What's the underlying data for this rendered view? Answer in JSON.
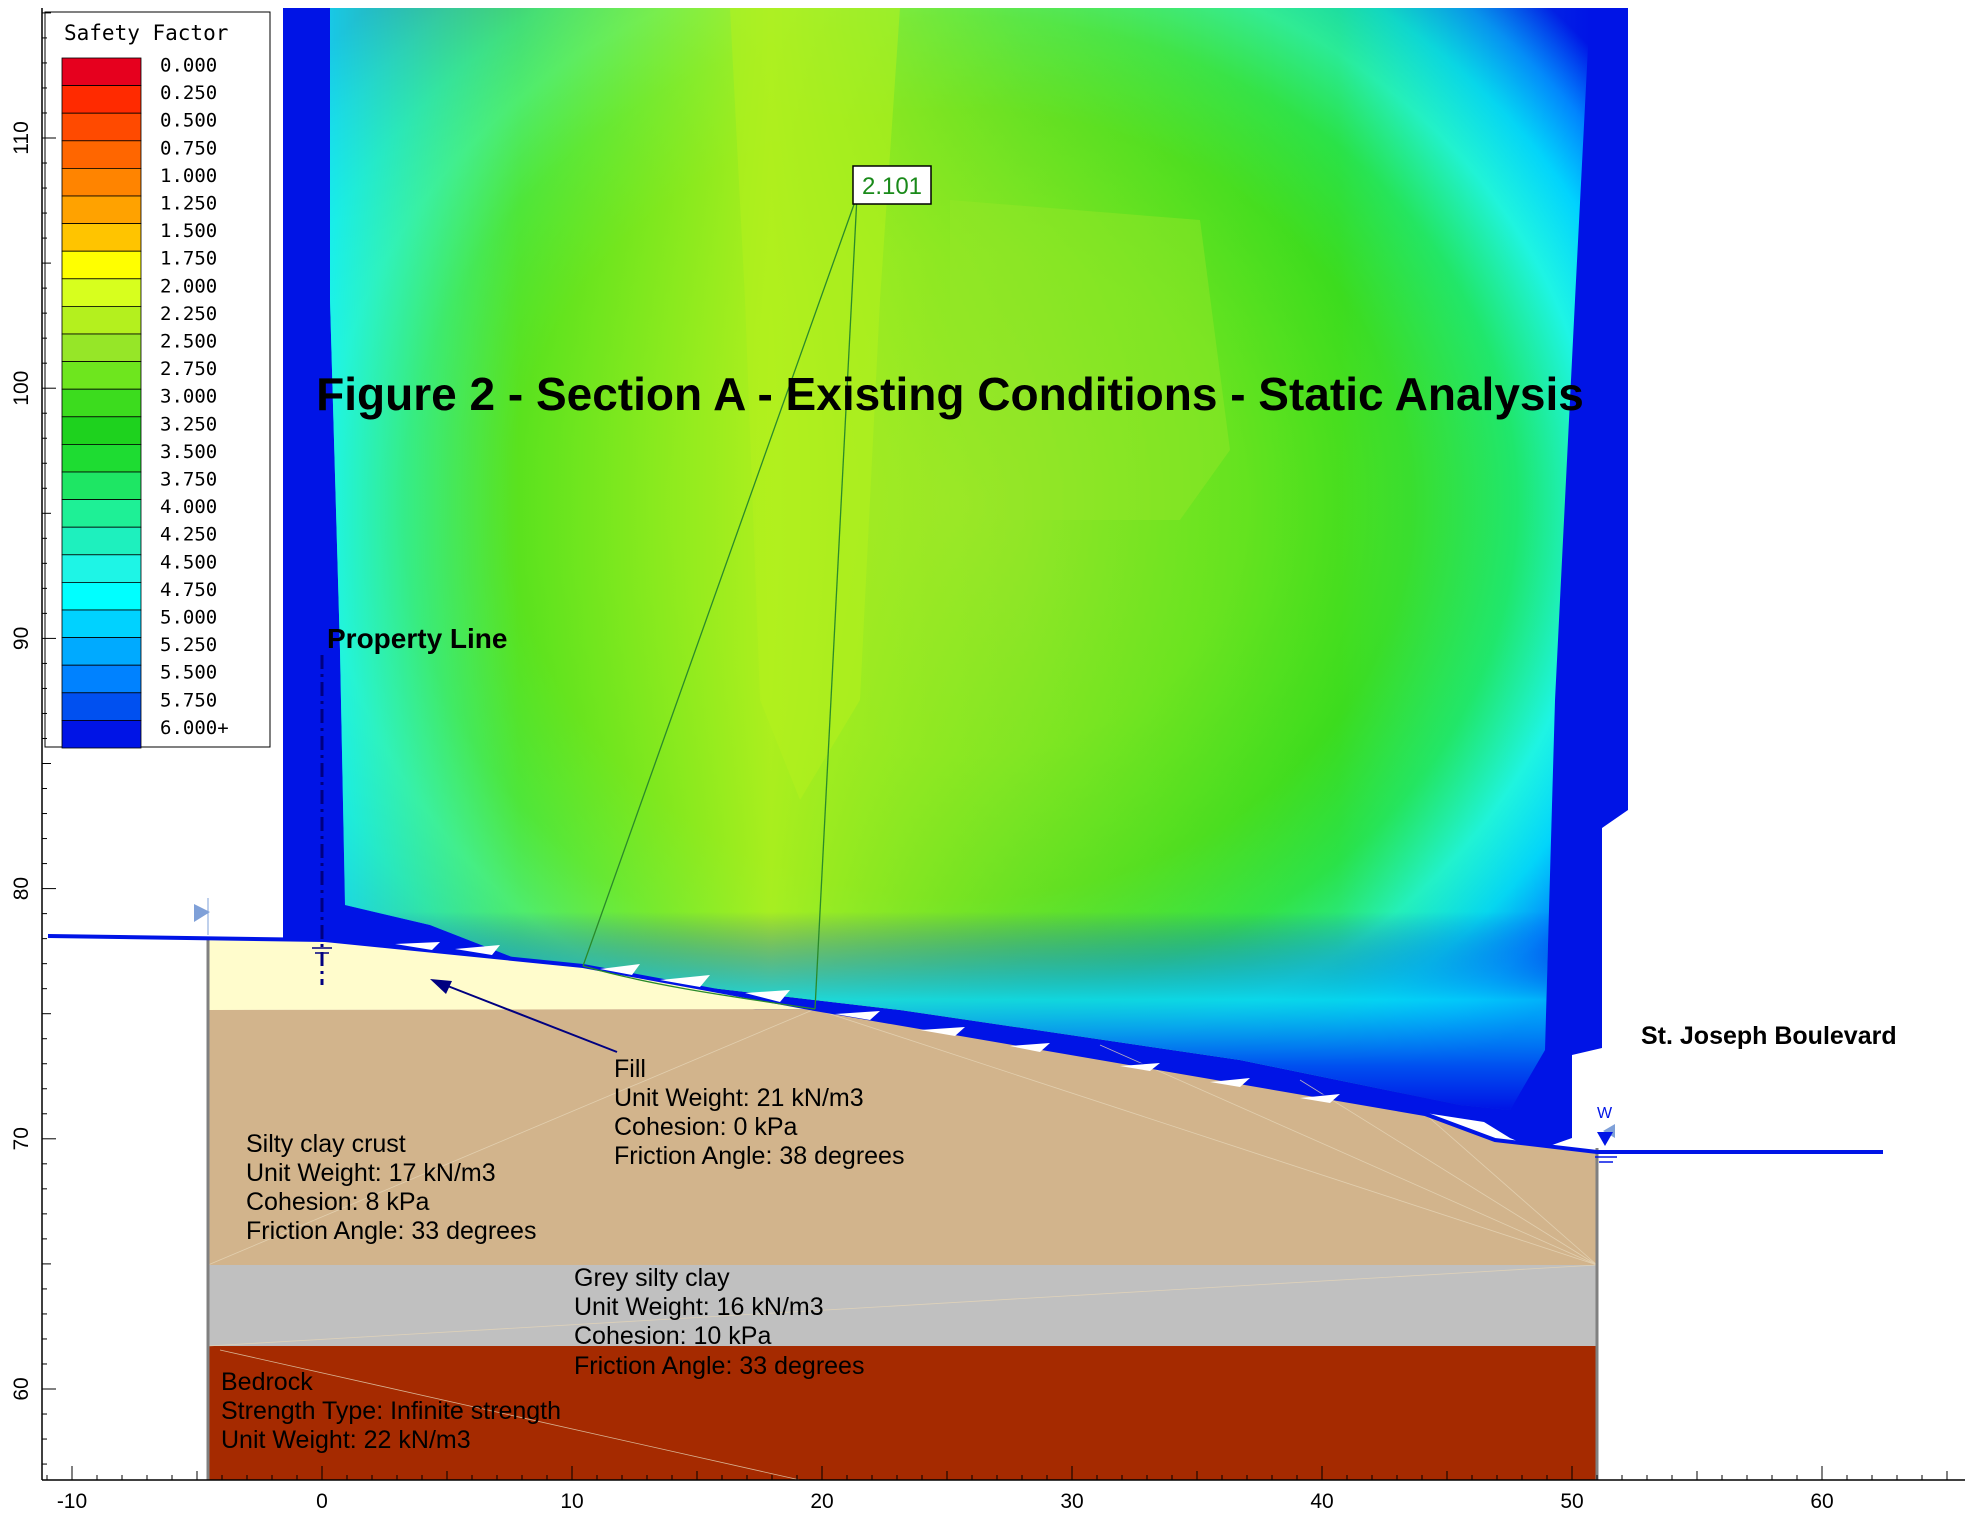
{
  "figure": {
    "title": "Figure 2 - Section A - Existing Conditions - Static Analysis"
  },
  "legend": {
    "title": "Safety Factor",
    "entries": [
      {
        "label": "0.000",
        "color": "#e6001e"
      },
      {
        "label": "0.250",
        "color": "#ff2a00"
      },
      {
        "label": "0.500",
        "color": "#ff4a00"
      },
      {
        "label": "0.750",
        "color": "#ff6600"
      },
      {
        "label": "1.000",
        "color": "#ff8400"
      },
      {
        "label": "1.250",
        "color": "#ffa200"
      },
      {
        "label": "1.500",
        "color": "#ffc400"
      },
      {
        "label": "1.750",
        "color": "#ffff00"
      },
      {
        "label": "2.000",
        "color": "#d7ff1e"
      },
      {
        "label": "2.250",
        "color": "#b4f01e"
      },
      {
        "label": "2.500",
        "color": "#96e628"
      },
      {
        "label": "2.750",
        "color": "#6ee61e"
      },
      {
        "label": "3.000",
        "color": "#3cdc1e"
      },
      {
        "label": "3.250",
        "color": "#1ed21e"
      },
      {
        "label": "3.500",
        "color": "#1edc32"
      },
      {
        "label": "3.750",
        "color": "#1ee664"
      },
      {
        "label": "4.000",
        "color": "#1ef096"
      },
      {
        "label": "4.250",
        "color": "#1ef0be"
      },
      {
        "label": "4.500",
        "color": "#1ef5e6"
      },
      {
        "label": "4.750",
        "color": "#00ffff"
      },
      {
        "label": "5.000",
        "color": "#00d2ff"
      },
      {
        "label": "5.250",
        "color": "#00aaff"
      },
      {
        "label": "5.500",
        "color": "#0082ff"
      },
      {
        "label": "5.750",
        "color": "#0050f0"
      },
      {
        "label": "6.000+",
        "color": "#0014e6"
      }
    ]
  },
  "axes": {
    "x_ticks": [
      "-10",
      "0",
      "10",
      "20",
      "30",
      "40",
      "50",
      "60"
    ],
    "y_ticks": [
      "60",
      "70",
      "80",
      "90",
      "100",
      "110"
    ]
  },
  "annotations": {
    "min_safety_factor": "2.101",
    "property_line": "Property Line",
    "road": "St. Joseph Boulevard",
    "water_marker": "W"
  },
  "materials": {
    "fill": {
      "name": "Fill",
      "unit_weight": "Unit Weight: 21 kN/m3",
      "cohesion": "Cohesion: 0 kPa",
      "friction": "Friction Angle: 38 degrees",
      "color": "#fffccc"
    },
    "silty_clay_crust": {
      "name": "Silty clay crust",
      "unit_weight": "Unit Weight: 17 kN/m3",
      "cohesion": "Cohesion: 8 kPa",
      "friction": "Friction Angle: 33 degrees",
      "color": "#d2b48c"
    },
    "grey_silty_clay": {
      "name": "Grey silty clay",
      "unit_weight": "Unit Weight: 16 kN/m3",
      "cohesion": "Cohesion: 10 kPa",
      "friction": "Friction Angle: 33 degrees",
      "color": "#c0c0c0"
    },
    "bedrock": {
      "name": "Bedrock",
      "strength_type": "Strength Type: Infinite strength",
      "unit_weight": "Unit Weight: 22 kN/m3",
      "color": "#a52a00"
    }
  }
}
